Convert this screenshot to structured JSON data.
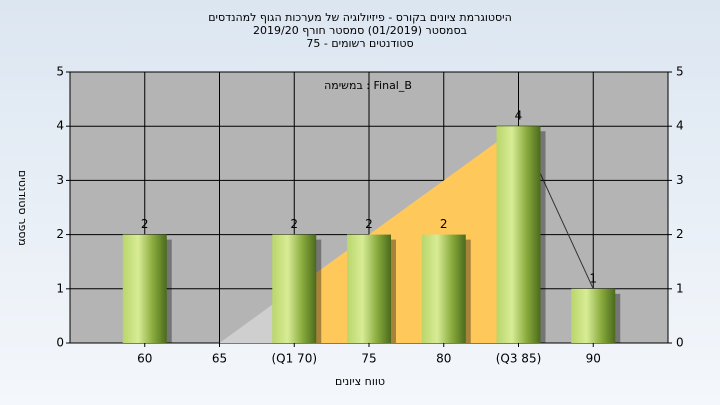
{
  "chart_data": {
    "type": "bar",
    "title": "היסטוגרמת ציונים בקורס - פיזיולוגיה של מערכות הגוף למהנדסים",
    "subtitle": "בסמסטר  (01/2019)  סמסטר חורף 2019/20",
    "subtitle2": "סטודנטים רשומים - 75",
    "annotation": "במשימה : Final_B",
    "xlabel": "טווח ציונים",
    "ylabel": "מספר סטודנטים",
    "categories": [
      "60",
      "65",
      "(Q1 70)",
      "75",
      "80",
      "(Q3 85)",
      "90"
    ],
    "values": [
      2,
      null,
      2,
      2,
      2,
      4,
      1
    ],
    "color": "#8fb23a",
    "ylim": [
      0,
      5
    ],
    "yticks": [
      0,
      1,
      2,
      3,
      4,
      5
    ],
    "y2lim": [
      0,
      5
    ],
    "y2ticks": [
      0,
      1,
      2,
      3,
      4,
      5
    ],
    "grid": true
  }
}
